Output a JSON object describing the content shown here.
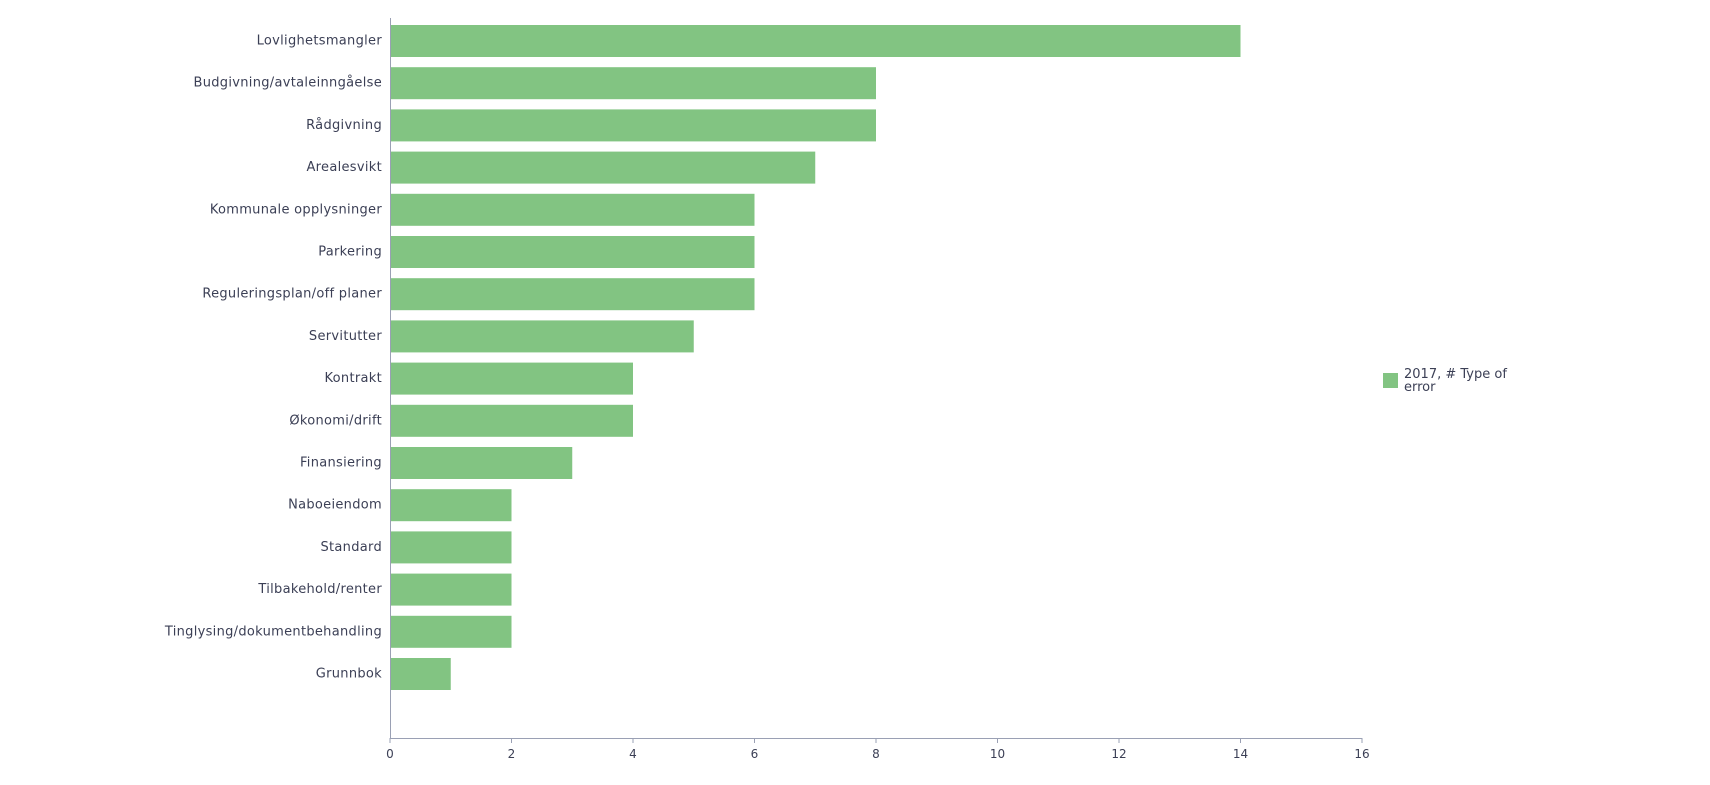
{
  "chart_data": {
    "type": "bar",
    "orientation": "horizontal",
    "title": "",
    "xlabel": "",
    "ylabel": "",
    "categories": [
      "Lovlighetsmangler",
      "Budgivning/avtaleinngåelse",
      "Rådgivning",
      "Arealesvikt",
      "Kommunale opplysninger",
      "Parkering",
      "Reguleringsplan/off planer",
      "Servitutter",
      "Kontrakt",
      "Økonomi/drift",
      "Finansiering",
      "Naboeiendom",
      "Standard",
      "Tilbakehold/renter",
      "Tinglysing/dokumentbehandling",
      "Grunnbok"
    ],
    "series": [
      {
        "name": "2017, # Type of error",
        "values": [
          14,
          8,
          8,
          7,
          6,
          6,
          6,
          5,
          4,
          4,
          3,
          2,
          2,
          2,
          2,
          1
        ],
        "color": "#82c482"
      }
    ],
    "xlim": [
      0,
      16
    ],
    "xticks": [
      0,
      2,
      4,
      6,
      8,
      10,
      12,
      14,
      16
    ],
    "grid": false,
    "legend": {
      "position": "right",
      "lines": [
        "2017, # Type of",
        "error"
      ]
    },
    "colors": {
      "bar": "#82c482",
      "axis": "#9aa0b4",
      "text": "#3b3f55"
    }
  }
}
